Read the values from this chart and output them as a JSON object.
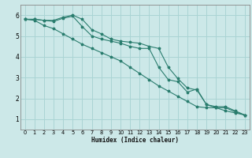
{
  "xlabel": "Humidex (Indice chaleur)",
  "ylabel": "",
  "xlim": [
    -0.5,
    23.5
  ],
  "ylim": [
    0.5,
    6.5
  ],
  "yticks": [
    1,
    2,
    3,
    4,
    5,
    6
  ],
  "xticks": [
    0,
    1,
    2,
    3,
    4,
    5,
    6,
    7,
    8,
    9,
    10,
    11,
    12,
    13,
    14,
    15,
    16,
    17,
    18,
    19,
    20,
    21,
    22,
    23
  ],
  "bg_color": "#cce8e8",
  "grid_color": "#aad4d4",
  "line_color": "#2a7d6e",
  "line1_y": [
    5.8,
    5.8,
    5.75,
    5.75,
    5.9,
    6.0,
    5.8,
    5.3,
    5.1,
    4.85,
    4.75,
    4.7,
    4.65,
    4.5,
    4.4,
    3.5,
    2.95,
    2.5,
    2.4,
    1.7,
    1.6,
    1.6,
    1.4,
    1.2
  ],
  "line2_y": [
    5.8,
    5.8,
    5.75,
    5.7,
    5.85,
    5.95,
    5.45,
    5.0,
    4.85,
    4.75,
    4.65,
    4.5,
    4.4,
    4.4,
    3.5,
    2.9,
    2.8,
    2.3,
    2.45,
    1.7,
    1.55,
    1.55,
    1.35,
    1.2
  ],
  "line3_y": [
    5.8,
    5.75,
    5.5,
    5.35,
    5.1,
    4.85,
    4.6,
    4.4,
    4.2,
    4.0,
    3.8,
    3.5,
    3.2,
    2.9,
    2.6,
    2.35,
    2.1,
    1.85,
    1.6,
    1.55,
    1.55,
    1.4,
    1.3,
    1.2
  ],
  "xlabel_fontsize": 5.5,
  "tick_fontsize_x": 4.8,
  "tick_fontsize_y": 5.5
}
